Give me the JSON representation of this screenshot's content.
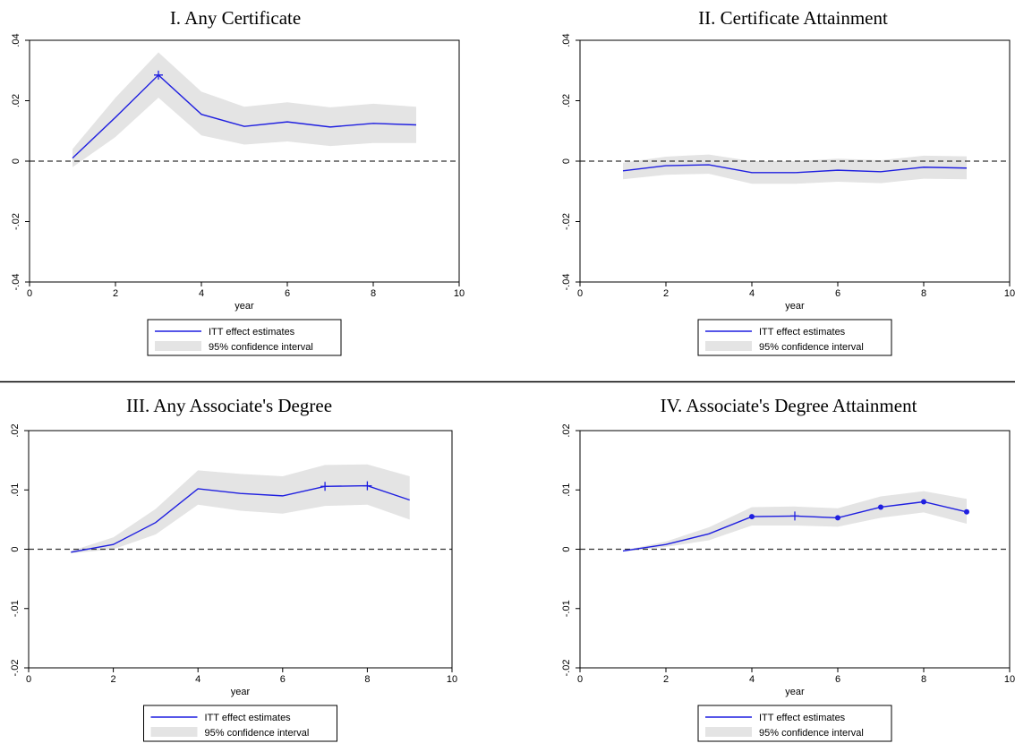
{
  "figure": {
    "separator": "horizontal-rule"
  },
  "chart_data": [
    {
      "type": "line",
      "title": "I. Any Certificate",
      "xlabel": "year",
      "ylabel": "",
      "xlim": [
        0,
        10
      ],
      "ylim": [
        -0.04,
        0.04
      ],
      "xticks": [
        0,
        2,
        4,
        6,
        8,
        10
      ],
      "xtick_labels": [
        "0",
        "2",
        "4",
        "6",
        "8",
        "10"
      ],
      "yticks": [
        -0.04,
        -0.02,
        0,
        0.02,
        0.04
      ],
      "ytick_labels": [
        "-.04",
        "-.02",
        "0",
        ".02",
        ".04"
      ],
      "reference_line": {
        "y": 0,
        "style": "dashed"
      },
      "grid": false,
      "legend_position": "bottom",
      "series": [
        {
          "name": "ITT effect estimates",
          "kind": "line",
          "color": "#1f1fe0",
          "x": [
            1,
            2,
            3,
            4,
            5,
            6,
            7,
            8,
            9
          ],
          "y": [
            0.001,
            0.0145,
            0.0285,
            0.0155,
            0.0115,
            0.013,
            0.0113,
            0.0125,
            0.012
          ],
          "markers": [
            {
              "x": 3,
              "shape": "plus"
            }
          ]
        },
        {
          "name": "95% confidence interval",
          "kind": "band",
          "color": "#e4e4e4",
          "x": [
            1,
            2,
            3,
            4,
            5,
            6,
            7,
            8,
            9
          ],
          "lower": [
            -0.002,
            0.008,
            0.021,
            0.0085,
            0.0055,
            0.0065,
            0.005,
            0.006,
            0.006
          ],
          "upper": [
            0.004,
            0.021,
            0.036,
            0.023,
            0.018,
            0.0195,
            0.0178,
            0.019,
            0.018
          ]
        }
      ]
    },
    {
      "type": "line",
      "title": "II. Certificate Attainment",
      "xlabel": "year",
      "ylabel": "",
      "xlim": [
        0,
        10
      ],
      "ylim": [
        -0.04,
        0.04
      ],
      "xticks": [
        0,
        2,
        4,
        6,
        8,
        10
      ],
      "xtick_labels": [
        "0",
        "2",
        "4",
        "6",
        "8",
        "10"
      ],
      "yticks": [
        -0.04,
        -0.02,
        0,
        0.02,
        0.04
      ],
      "ytick_labels": [
        "-.04",
        "-.02",
        "0",
        ".02",
        ".04"
      ],
      "reference_line": {
        "y": 0,
        "style": "dashed"
      },
      "grid": false,
      "legend_position": "bottom",
      "series": [
        {
          "name": "ITT effect estimates",
          "kind": "line",
          "color": "#1f1fe0",
          "x": [
            1,
            2,
            3,
            4,
            5,
            6,
            7,
            8,
            9
          ],
          "y": [
            -0.0032,
            -0.0015,
            -0.0012,
            -0.0038,
            -0.0038,
            -0.003,
            -0.0035,
            -0.002,
            -0.0023
          ],
          "markers": []
        },
        {
          "name": "95% confidence interval",
          "kind": "band",
          "color": "#e4e4e4",
          "x": [
            1,
            2,
            3,
            4,
            5,
            6,
            7,
            8,
            9
          ],
          "lower": [
            -0.006,
            -0.0045,
            -0.0042,
            -0.0075,
            -0.0075,
            -0.0068,
            -0.0073,
            -0.0058,
            -0.006
          ],
          "upper": [
            -0.0005,
            0.0015,
            0.0022,
            0.0,
            0.0,
            0.0008,
            0.0003,
            0.0018,
            0.0016
          ]
        }
      ]
    },
    {
      "type": "line",
      "title": "III. Any Associate's Degree",
      "xlabel": "year",
      "ylabel": "",
      "xlim": [
        0,
        10
      ],
      "ylim": [
        -0.02,
        0.02
      ],
      "xticks": [
        0,
        2,
        4,
        6,
        8,
        10
      ],
      "xtick_labels": [
        "0",
        "2",
        "4",
        "6",
        "8",
        "10"
      ],
      "yticks": [
        -0.02,
        -0.01,
        0,
        0.01,
        0.02
      ],
      "ytick_labels": [
        "-.02",
        "-.01",
        "0",
        ".01",
        ".02"
      ],
      "reference_line": {
        "y": 0,
        "style": "dashed"
      },
      "grid": false,
      "legend_position": "bottom",
      "series": [
        {
          "name": "ITT effect estimates",
          "kind": "line",
          "color": "#1f1fe0",
          "x": [
            1,
            2,
            3,
            4,
            5,
            6,
            7,
            8,
            9
          ],
          "y": [
            -0.0005,
            0.0008,
            0.0045,
            0.0102,
            0.0094,
            0.009,
            0.0106,
            0.0107,
            0.0083
          ],
          "markers": [
            {
              "x": 7,
              "shape": "plus"
            },
            {
              "x": 8,
              "shape": "plus"
            }
          ]
        },
        {
          "name": "95% confidence interval",
          "kind": "band",
          "color": "#e4e4e4",
          "x": [
            1,
            2,
            3,
            4,
            5,
            6,
            7,
            8,
            9
          ],
          "lower": [
            -0.0007,
            0.0,
            0.0025,
            0.0075,
            0.0065,
            0.006,
            0.0073,
            0.0075,
            0.005
          ],
          "upper": [
            -0.0003,
            0.002,
            0.0068,
            0.0133,
            0.0127,
            0.0123,
            0.0142,
            0.0143,
            0.0123
          ]
        }
      ]
    },
    {
      "type": "line",
      "title": "IV. Associate's Degree Attainment",
      "xlabel": "year",
      "ylabel": "",
      "xlim": [
        0,
        10
      ],
      "ylim": [
        -0.02,
        0.02
      ],
      "xticks": [
        0,
        2,
        4,
        6,
        8,
        10
      ],
      "xtick_labels": [
        "0",
        "2",
        "4",
        "6",
        "8",
        "10"
      ],
      "yticks": [
        -0.02,
        -0.01,
        0,
        0.01,
        0.02
      ],
      "ytick_labels": [
        "-.02",
        "-.01",
        "0",
        ".01",
        ".02"
      ],
      "reference_line": {
        "y": 0,
        "style": "dashed"
      },
      "grid": false,
      "legend_position": "bottom",
      "series": [
        {
          "name": "ITT effect estimates",
          "kind": "line",
          "color": "#1f1fe0",
          "x": [
            1,
            2,
            3,
            4,
            5,
            6,
            7,
            8,
            9
          ],
          "y": [
            -0.0003,
            0.0008,
            0.0026,
            0.0055,
            0.0056,
            0.0053,
            0.0071,
            0.008,
            0.0063
          ],
          "markers": [
            {
              "x": 4,
              "shape": "dot"
            },
            {
              "x": 5,
              "shape": "plus"
            },
            {
              "x": 6,
              "shape": "dot"
            },
            {
              "x": 7,
              "shape": "dot"
            },
            {
              "x": 8,
              "shape": "dot"
            },
            {
              "x": 9,
              "shape": "dot"
            }
          ]
        },
        {
          "name": "95% confidence interval",
          "kind": "band",
          "color": "#e4e4e4",
          "x": [
            1,
            2,
            3,
            4,
            5,
            6,
            7,
            8,
            9
          ],
          "lower": [
            -0.0004,
            0.0004,
            0.0015,
            0.004,
            0.004,
            0.0038,
            0.0053,
            0.0062,
            0.0043
          ],
          "upper": [
            -0.0002,
            0.0013,
            0.0037,
            0.0071,
            0.0072,
            0.0069,
            0.0089,
            0.0098,
            0.0085
          ]
        }
      ]
    }
  ]
}
